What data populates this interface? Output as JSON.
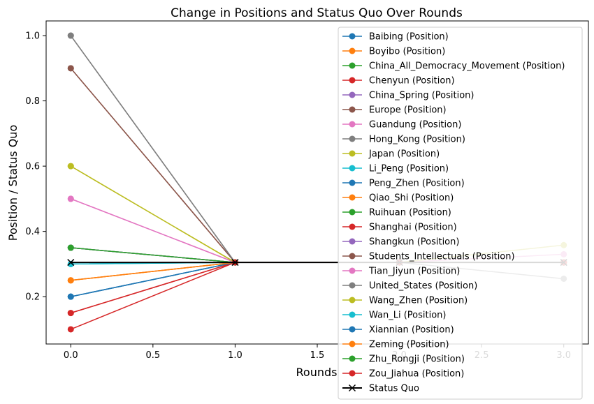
{
  "chart_data": {
    "type": "line",
    "title": "Change in Positions and Status Quo Over Rounds",
    "xlabel": "Rounds",
    "ylabel": "Position / Status Quo",
    "xlim": [
      -0.15,
      3.15
    ],
    "ylim": [
      0.055,
      1.045
    ],
    "xticks": [
      0.0,
      0.5,
      1.0,
      1.5,
      2.0,
      2.5,
      3.0
    ],
    "xtick_labels": [
      "0.0",
      "0.5",
      "1.0",
      "1.5",
      "2.0",
      "2.5",
      "3.0"
    ],
    "yticks": [
      0.2,
      0.4,
      0.6,
      0.8,
      1.0
    ],
    "ytick_labels": [
      "0.2",
      "0.4",
      "0.6",
      "0.8",
      "1.0"
    ],
    "grid": false,
    "legend_position": "upper-right",
    "x": [
      0,
      1,
      2,
      3
    ],
    "series": [
      {
        "name": "Baibing (Position)",
        "color": "#1f77b4",
        "marker": "o",
        "values": [
          0.2,
          0.305,
          0.305,
          0.305
        ]
      },
      {
        "name": "Boyibo (Position)",
        "color": "#ff7f0e",
        "marker": "o",
        "values": [
          0.25,
          0.305,
          0.305,
          0.305
        ]
      },
      {
        "name": "China_All_Democracy_Movement (Position)",
        "color": "#2ca02c",
        "marker": "o",
        "values": [
          0.35,
          0.305,
          0.305,
          0.305
        ]
      },
      {
        "name": "Chenyun (Position)",
        "color": "#d62728",
        "marker": "o",
        "values": [
          0.15,
          0.305,
          0.305,
          0.305
        ]
      },
      {
        "name": "China_Spring (Position)",
        "color": "#9467bd",
        "marker": "o",
        "values": [
          0.35,
          0.305,
          0.305,
          0.305
        ]
      },
      {
        "name": "Europe (Position)",
        "color": "#8c564b",
        "marker": "o",
        "values": [
          0.9,
          0.305,
          0.305,
          0.305
        ]
      },
      {
        "name": "Guandung (Position)",
        "color": "#e377c2",
        "marker": "o",
        "values": [
          0.5,
          0.305,
          0.305,
          0.33
        ]
      },
      {
        "name": "Hong_Kong (Position)",
        "color": "#7f7f7f",
        "marker": "o",
        "values": [
          1.0,
          0.305,
          0.305,
          0.305
        ]
      },
      {
        "name": "Japan (Position)",
        "color": "#bcbd22",
        "marker": "o",
        "values": [
          0.6,
          0.305,
          0.305,
          0.358
        ]
      },
      {
        "name": "Li_Peng (Position)",
        "color": "#17becf",
        "marker": "o",
        "values": [
          0.3,
          0.305,
          0.305,
          0.305
        ]
      },
      {
        "name": "Peng_Zhen (Position)",
        "color": "#1f77b4",
        "marker": "o",
        "values": [
          0.2,
          0.305,
          0.305,
          0.305
        ]
      },
      {
        "name": "Qiao_Shi (Position)",
        "color": "#ff7f0e",
        "marker": "o",
        "values": [
          0.25,
          0.305,
          0.305,
          0.305
        ]
      },
      {
        "name": "Ruihuan (Position)",
        "color": "#2ca02c",
        "marker": "o",
        "values": [
          0.35,
          0.305,
          0.305,
          0.305
        ]
      },
      {
        "name": "Shanghai (Position)",
        "color": "#d62728",
        "marker": "o",
        "values": [
          0.15,
          0.305,
          0.305,
          0.305
        ]
      },
      {
        "name": "Shangkun (Position)",
        "color": "#9467bd",
        "marker": "o",
        "values": [
          0.35,
          0.305,
          0.305,
          0.305
        ]
      },
      {
        "name": "Students_Intellectuals (Position)",
        "color": "#8c564b",
        "marker": "o",
        "values": [
          0.9,
          0.305,
          0.305,
          0.305
        ]
      },
      {
        "name": "Tian_Jiyun (Position)",
        "color": "#e377c2",
        "marker": "o",
        "values": [
          0.5,
          0.305,
          0.305,
          0.305
        ]
      },
      {
        "name": "United_States (Position)",
        "color": "#7f7f7f",
        "marker": "o",
        "values": [
          1.0,
          0.305,
          0.305,
          0.255
        ]
      },
      {
        "name": "Wang_Zhen (Position)",
        "color": "#bcbd22",
        "marker": "o",
        "values": [
          0.6,
          0.305,
          0.305,
          0.305
        ]
      },
      {
        "name": "Wan_Li (Position)",
        "color": "#17becf",
        "marker": "o",
        "values": [
          0.3,
          0.305,
          0.305,
          0.305
        ]
      },
      {
        "name": "Xiannian (Position)",
        "color": "#1f77b4",
        "marker": "o",
        "values": [
          0.2,
          0.305,
          0.305,
          0.305
        ]
      },
      {
        "name": "Zeming (Position)",
        "color": "#ff7f0e",
        "marker": "o",
        "values": [
          0.25,
          0.305,
          0.305,
          0.305
        ]
      },
      {
        "name": "Zhu_Rongji (Position)",
        "color": "#2ca02c",
        "marker": "o",
        "values": [
          0.35,
          0.305,
          0.305,
          0.305
        ]
      },
      {
        "name": "Zou_Jiahua (Position)",
        "color": "#d62728",
        "marker": "o",
        "values": [
          0.1,
          0.305,
          0.305,
          0.305
        ]
      },
      {
        "name": "Status Quo",
        "color": "#000000",
        "marker": "x",
        "values": [
          0.305,
          0.305,
          0.305,
          0.305
        ]
      }
    ]
  }
}
